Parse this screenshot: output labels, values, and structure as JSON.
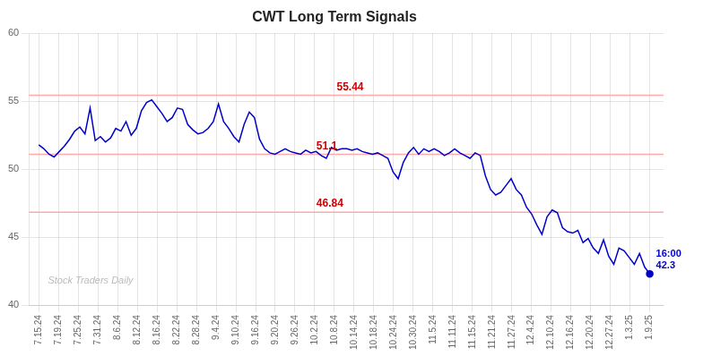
{
  "chart_data": {
    "type": "line",
    "title": "CWT Long Term Signals",
    "color": "#0000cc",
    "marker": "last",
    "grid": true,
    "x": [
      0,
      0.260504,
      0.521008,
      0.781513,
      1.042017,
      1.302521,
      1.563025,
      1.823529,
      2.084034,
      2.344538,
      2.605042,
      2.865546,
      3.12605,
      3.386555,
      3.647059,
      3.907563,
      4.168067,
      4.428571,
      4.689076,
      4.94958,
      5.210084,
      5.470588,
      5.731092,
      5.991597,
      6.252101,
      6.512605,
      6.773109,
      7.033613,
      7.294118,
      7.554622,
      7.815126,
      8.07563,
      8.336134,
      8.596639,
      8.857143,
      9.117647,
      9.378151,
      9.638655,
      9.89916,
      10.159664,
      10.420168,
      10.680672,
      10.941176,
      11.201681,
      11.462185,
      11.722689,
      11.983193,
      12.243697,
      12.504202,
      12.764706,
      13.02521,
      13.285714,
      13.546218,
      13.806723,
      14.067227,
      14.327731,
      14.588235,
      14.848739,
      15.109244,
      15.369748,
      15.630252,
      15.890756,
      16.151261,
      16.411765,
      16.672269,
      16.932773,
      17.193277,
      17.453782,
      17.714286,
      17.97479,
      18.235294,
      18.495798,
      18.756303,
      19.016807,
      19.277311,
      19.537815,
      19.798319,
      20.058824,
      20.319328,
      20.579832,
      20.840336,
      21.10084,
      21.361345,
      21.621849,
      21.882353,
      22.142857,
      22.403361,
      22.663866,
      22.92437,
      23.184874,
      23.445378,
      23.705882,
      23.966387,
      24.226891,
      24.487395,
      24.747899,
      25.008403,
      25.268908,
      25.529412,
      25.789916,
      26.05042,
      26.310924,
      26.571429,
      26.831933,
      27.092437,
      27.352941,
      27.613445,
      27.87395,
      28.134454,
      28.394958,
      28.655462,
      28.915966,
      29.176471,
      29.436975,
      29.697479,
      29.957983,
      30.218487,
      30.478992,
      30.739496,
      31
    ],
    "values": [
      51.8,
      51.5,
      51.1,
      50.9,
      51.3,
      51.7,
      52.2,
      52.8,
      53.1,
      52.6,
      54.5,
      52.1,
      52.4,
      52.0,
      52.3,
      53.0,
      52.8,
      53.5,
      52.5,
      53.0,
      54.3,
      54.9,
      55.1,
      54.6,
      54.1,
      53.5,
      53.8,
      54.5,
      54.4,
      53.3,
      52.9,
      52.6,
      52.7,
      53.0,
      53.5,
      54.8,
      53.5,
      53.0,
      52.4,
      52.0,
      53.3,
      54.2,
      53.8,
      52.2,
      51.5,
      51.2,
      51.1,
      51.3,
      51.5,
      51.3,
      51.2,
      51.1,
      51.4,
      51.2,
      51.3,
      51.0,
      50.8,
      51.6,
      51.4,
      51.5,
      51.5,
      51.4,
      51.5,
      51.3,
      51.2,
      51.1,
      51.2,
      51.0,
      50.8,
      49.8,
      49.3,
      50.5,
      51.2,
      51.6,
      51.1,
      51.5,
      51.3,
      51.5,
      51.3,
      51.0,
      51.2,
      51.5,
      51.2,
      51.0,
      50.8,
      51.2,
      51.0,
      49.5,
      48.5,
      48.1,
      48.3,
      48.8,
      49.3,
      48.5,
      48.1,
      47.2,
      46.7,
      45.9,
      45.2,
      46.5,
      47.0,
      46.8,
      45.7,
      45.4,
      45.3,
      45.5,
      44.6,
      44.9,
      44.2,
      43.8,
      44.8,
      43.6,
      43.0,
      44.2,
      44.0,
      43.5,
      43.0,
      43.8,
      42.8,
      42.3
    ],
    "xlim": [
      -0.5,
      31.7
    ],
    "xticks": [
      {
        "value": 0,
        "label": "7.15.24"
      },
      {
        "value": 1,
        "label": "7.19.24"
      },
      {
        "value": 2,
        "label": "7.25.24"
      },
      {
        "value": 3,
        "label": "7.31.24"
      },
      {
        "value": 4,
        "label": "8.6.24"
      },
      {
        "value": 5,
        "label": "8.12.24"
      },
      {
        "value": 6,
        "label": "8.16.24"
      },
      {
        "value": 7,
        "label": "8.22.24"
      },
      {
        "value": 8,
        "label": "8.28.24"
      },
      {
        "value": 9,
        "label": "9.4.24"
      },
      {
        "value": 10,
        "label": "9.10.24"
      },
      {
        "value": 11,
        "label": "9.16.24"
      },
      {
        "value": 12,
        "label": "9.20.24"
      },
      {
        "value": 13,
        "label": "9.26.24"
      },
      {
        "value": 14,
        "label": "10.2.24"
      },
      {
        "value": 15,
        "label": "10.8.24"
      },
      {
        "value": 16,
        "label": "10.14.24"
      },
      {
        "value": 17,
        "label": "10.18.24"
      },
      {
        "value": 18,
        "label": "10.24.24"
      },
      {
        "value": 19,
        "label": "10.30.24"
      },
      {
        "value": 20,
        "label": "11.5.24"
      },
      {
        "value": 21,
        "label": "11.11.24"
      },
      {
        "value": 22,
        "label": "11.15.24"
      },
      {
        "value": 23,
        "label": "11.21.24"
      },
      {
        "value": 24,
        "label": "11.27.24"
      },
      {
        "value": 25,
        "label": "12.4.24"
      },
      {
        "value": 26,
        "label": "12.10.24"
      },
      {
        "value": 27,
        "label": "12.16.24"
      },
      {
        "value": 28,
        "label": "12.20.24"
      },
      {
        "value": 29,
        "label": "12.27.24"
      },
      {
        "value": 30,
        "label": "1.3.25"
      },
      {
        "value": 31,
        "label": "1.9.25"
      }
    ],
    "ylim": [
      40,
      60
    ],
    "yticks": [
      40,
      45,
      50,
      55,
      60
    ],
    "hlines": [
      {
        "value": 55.44,
        "label": "55.44",
        "color": "#ffaaaa",
        "label_color": "#cc0000"
      },
      {
        "value": 51.1,
        "label": "51.1",
        "color": "#ffaaaa",
        "label_color": "#cc0000"
      },
      {
        "value": 46.84,
        "label": "46.84",
        "color": "#ffaaaa",
        "label_color": "#cc0000"
      }
    ],
    "annotations": [
      {
        "text": [
          "16:00",
          "42.3"
        ],
        "x": 31,
        "y": 42.3,
        "color": "#0000cc"
      }
    ],
    "watermark": {
      "text": "Stock Traders Daily",
      "color": "#bbbbbb"
    }
  }
}
